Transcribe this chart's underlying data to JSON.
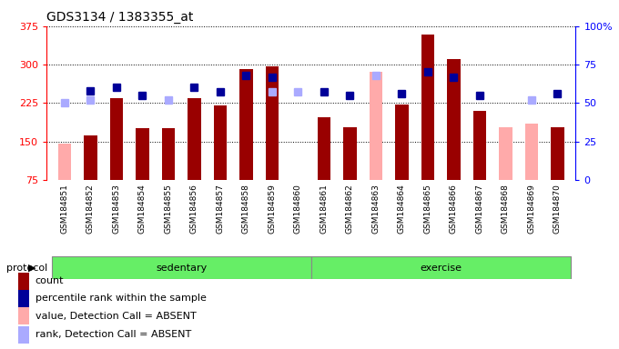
{
  "title": "GDS3134 / 1383355_at",
  "samples": [
    "GSM184851",
    "GSM184852",
    "GSM184853",
    "GSM184854",
    "GSM184855",
    "GSM184856",
    "GSM184857",
    "GSM184858",
    "GSM184859",
    "GSM184860",
    "GSM184861",
    "GSM184862",
    "GSM184863",
    "GSM184864",
    "GSM184865",
    "GSM184866",
    "GSM184867",
    "GSM184868",
    "GSM184869",
    "GSM184870"
  ],
  "count": [
    null,
    162,
    235,
    175,
    175,
    235,
    220,
    291,
    297,
    null,
    197,
    178,
    null,
    222,
    358,
    310,
    210,
    null,
    null,
    178
  ],
  "count_absent": [
    145,
    null,
    null,
    null,
    null,
    null,
    null,
    null,
    null,
    null,
    null,
    null,
    286,
    null,
    null,
    null,
    null,
    178,
    185,
    null
  ],
  "rank": [
    null,
    58,
    60,
    55,
    null,
    60,
    57,
    68,
    67,
    null,
    57,
    55,
    null,
    56,
    70,
    67,
    55,
    null,
    null,
    56
  ],
  "rank_absent": [
    50,
    52,
    null,
    null,
    52,
    null,
    null,
    null,
    57,
    57,
    null,
    null,
    68,
    null,
    null,
    null,
    null,
    null,
    52,
    null
  ],
  "sedentary_count": 10,
  "ylim_left": [
    75,
    375
  ],
  "ylim_right": [
    0,
    100
  ],
  "yticks_left": [
    75,
    150,
    225,
    300,
    375
  ],
  "yticks_right": [
    0,
    25,
    50,
    75,
    100
  ],
  "ytick_labels_right": [
    "0",
    "25",
    "50",
    "75",
    "100%"
  ],
  "bar_color_present": "#990000",
  "bar_color_absent": "#ffaaaa",
  "rank_color_present": "#000099",
  "rank_color_absent": "#aaaaff",
  "protocol_label": "protocol",
  "group_labels": [
    "sedentary",
    "exercise"
  ],
  "group_color": "#66ee66",
  "legend_items": [
    {
      "color": "#990000",
      "label": "count"
    },
    {
      "color": "#000099",
      "label": "percentile rank within the sample"
    },
    {
      "color": "#ffaaaa",
      "label": "value, Detection Call = ABSENT"
    },
    {
      "color": "#aaaaff",
      "label": "rank, Detection Call = ABSENT"
    }
  ],
  "xtick_bg": "#d0d0d0",
  "plot_bg": "#ffffff"
}
